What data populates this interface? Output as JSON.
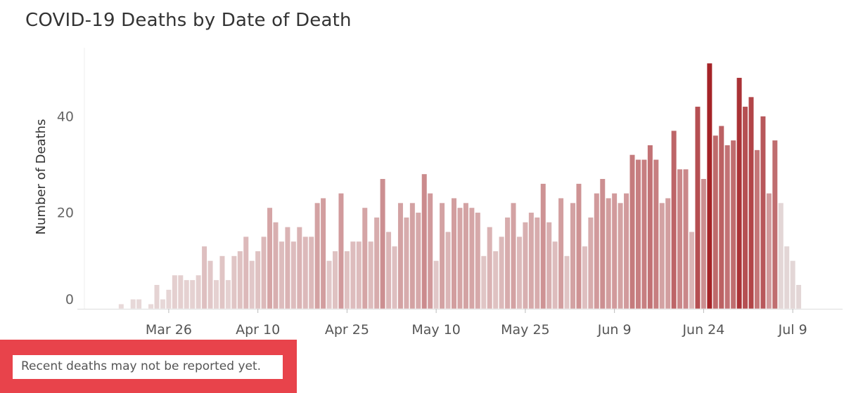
{
  "chart_data": {
    "type": "bar",
    "title": "COVID-19 Deaths by Date of Death",
    "xlabel": "",
    "ylabel": "Number of Deaths",
    "ylim": [
      0,
      54
    ],
    "yticks": [
      0,
      20,
      40
    ],
    "xticks": [
      "Mar 26",
      "Apr 10",
      "Apr 25",
      "May 10",
      "May 25",
      "Jun 9",
      "Jun 24",
      "Jul 9"
    ],
    "x_start": "Mar 18",
    "values": [
      1,
      0,
      2,
      2,
      0,
      1,
      5,
      2,
      4,
      7,
      7,
      6,
      6,
      7,
      13,
      10,
      6,
      11,
      6,
      11,
      12,
      15,
      10,
      12,
      15,
      21,
      18,
      14,
      17,
      14,
      17,
      15,
      15,
      22,
      23,
      10,
      12,
      24,
      12,
      14,
      14,
      21,
      14,
      19,
      27,
      16,
      13,
      22,
      19,
      22,
      20,
      28,
      24,
      10,
      22,
      16,
      23,
      21,
      22,
      21,
      20,
      11,
      17,
      12,
      15,
      19,
      22,
      15,
      18,
      20,
      19,
      26,
      18,
      14,
      23,
      11,
      22,
      26,
      13,
      19,
      24,
      27,
      23,
      24,
      22,
      24,
      32,
      31,
      31,
      34,
      31,
      22,
      23,
      37,
      29,
      29,
      16,
      42,
      27,
      51,
      36,
      38,
      34,
      35,
      48,
      42,
      44,
      33,
      40,
      24,
      35,
      22,
      13,
      10,
      5
    ],
    "color_low": "#e8dada",
    "color_high": "#a52327",
    "incomplete_color": "#e3d6d6",
    "grid": false
  },
  "note": {
    "text": "Recent deaths may not be reported yet.",
    "box_color": "#e8434b"
  }
}
